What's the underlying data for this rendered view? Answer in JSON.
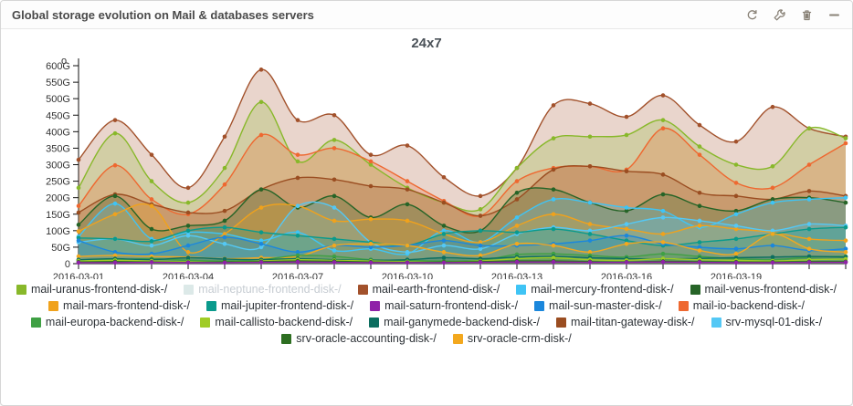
{
  "panel": {
    "title": "Global storage evolution on Mail & databases servers",
    "toolbar": {
      "icons": [
        "refresh-icon",
        "wrench-icon",
        "trash-icon",
        "minus-icon"
      ]
    }
  },
  "colors": {
    "header_title": "#4a4a4a",
    "toolbar_icon": "#8a8378",
    "axis_text": "#333333",
    "legend_text": "#2e3338",
    "legend_disabled_text": "#c6ccd2",
    "panel_border": "#d6d6d6"
  },
  "chart_data": {
    "type": "area",
    "title": "24x7",
    "xlabel": "",
    "ylabel": "",
    "grid": false,
    "legend_position": "bottom",
    "ylim": [
      0,
      620
    ],
    "y_ticks": [
      "0",
      "50G",
      "100G",
      "150G",
      "200G",
      "250G",
      "300G",
      "350G",
      "400G",
      "450G",
      "500G",
      "550G",
      "600G"
    ],
    "y_tick_values": [
      0,
      50,
      100,
      150,
      200,
      250,
      300,
      350,
      400,
      450,
      500,
      550,
      600
    ],
    "x": [
      "2016-03-01",
      "2016-03-02",
      "2016-03-03",
      "2016-03-04",
      "2016-03-05",
      "2016-03-06",
      "2016-03-07",
      "2016-03-08",
      "2016-03-09",
      "2016-03-10",
      "2016-03-11",
      "2016-03-12",
      "2016-03-13",
      "2016-03-14",
      "2016-03-15",
      "2016-03-16",
      "2016-03-17",
      "2016-03-18",
      "2016-03-19",
      "2016-03-20",
      "2016-03-21",
      "2016-03-22"
    ],
    "x_major_ticks": [
      "2016-03-01",
      "2016-03-04",
      "2016-03-07",
      "2016-03-10",
      "2016-03-13",
      "2016-03-16",
      "2016-03-19"
    ],
    "unit": "G",
    "axis_top_marker": "o",
    "series": [
      {
        "name": "mail-uranus-frontend-disk-/",
        "color": "#88b82a",
        "hidden": false,
        "values": [
          230,
          395,
          250,
          185,
          290,
          490,
          310,
          375,
          300,
          230,
          185,
          165,
          290,
          380,
          385,
          390,
          435,
          355,
          300,
          295,
          410,
          380
        ]
      },
      {
        "name": "mail-neptune-frontend-disk-/",
        "color": "#dce9e8",
        "hidden": true,
        "values": []
      },
      {
        "name": "mail-earth-frontend-disk-/",
        "color": "#a2512b",
        "hidden": false,
        "values": [
          315,
          435,
          330,
          230,
          385,
          588,
          435,
          450,
          330,
          358,
          262,
          205,
          290,
          480,
          485,
          445,
          510,
          420,
          370,
          475,
          410,
          385
        ]
      },
      {
        "name": "mail-mercury-frontend-disk-/",
        "color": "#3fc4f5",
        "hidden": false,
        "values": [
          82,
          182,
          75,
          95,
          90,
          70,
          95,
          40,
          45,
          30,
          100,
          65,
          140,
          195,
          185,
          170,
          160,
          110,
          150,
          185,
          195,
          200
        ]
      },
      {
        "name": "mail-venus-frontend-disk-/",
        "color": "#266427",
        "hidden": false,
        "values": [
          118,
          205,
          105,
          115,
          130,
          225,
          170,
          205,
          140,
          180,
          115,
          100,
          215,
          225,
          185,
          160,
          210,
          175,
          160,
          195,
          200,
          185
        ]
      },
      {
        "name": "mail-mars-frontend-disk-/",
        "color": "#f0a21c",
        "hidden": false,
        "values": [
          98,
          150,
          175,
          35,
          90,
          170,
          175,
          130,
          135,
          130,
          90,
          65,
          115,
          150,
          120,
          105,
          90,
          115,
          105,
          95,
          75,
          70
        ]
      },
      {
        "name": "mail-jupiter-frontend-disk-/",
        "color": "#0a9a8c",
        "hidden": false,
        "values": [
          78,
          75,
          68,
          100,
          110,
          95,
          85,
          75,
          65,
          55,
          90,
          100,
          95,
          105,
          90,
          70,
          55,
          65,
          75,
          90,
          105,
          110
        ]
      },
      {
        "name": "mail-saturn-frontend-disk-/",
        "color": "#8f22a8",
        "hidden": false,
        "values": [
          3,
          3,
          4,
          3,
          3,
          4,
          5,
          4,
          3,
          3,
          3,
          4,
          5,
          5,
          4,
          4,
          5,
          4,
          3,
          3,
          4,
          4
        ]
      },
      {
        "name": "mail-sun-master-disk-/",
        "color": "#1b87dc",
        "hidden": false,
        "values": [
          70,
          35,
          30,
          55,
          80,
          60,
          35,
          55,
          50,
          55,
          70,
          55,
          55,
          60,
          70,
          85,
          60,
          50,
          45,
          55,
          40,
          45
        ]
      },
      {
        "name": "mail-io-backend-disk-/",
        "color": "#ee6830",
        "hidden": false,
        "values": [
          175,
          298,
          195,
          150,
          240,
          390,
          330,
          350,
          310,
          250,
          190,
          145,
          250,
          290,
          295,
          285,
          410,
          330,
          245,
          230,
          300,
          365
        ]
      },
      {
        "name": "mail-europa-backend-disk-/",
        "color": "#3fa044",
        "hidden": false,
        "values": [
          10,
          12,
          15,
          10,
          8,
          12,
          25,
          22,
          12,
          10,
          8,
          10,
          28,
          30,
          25,
          20,
          30,
          22,
          15,
          12,
          20,
          22
        ]
      },
      {
        "name": "mail-callisto-backend-disk-/",
        "color": "#a0cc26",
        "hidden": false,
        "values": [
          8,
          10,
          8,
          6,
          5,
          8,
          12,
          10,
          8,
          6,
          5,
          8,
          15,
          18,
          12,
          10,
          15,
          12,
          10,
          8,
          12,
          14
        ]
      },
      {
        "name": "mail-ganymede-backend-disk-/",
        "color": "#0c6e60",
        "hidden": false,
        "values": [
          12,
          15,
          12,
          18,
          14,
          12,
          15,
          12,
          10,
          12,
          18,
          15,
          20,
          22,
          18,
          15,
          14,
          16,
          18,
          20,
          22,
          20
        ]
      },
      {
        "name": "mail-titan-gateway-disk-/",
        "color": "#9a4d21",
        "hidden": false,
        "values": [
          155,
          210,
          180,
          155,
          160,
          225,
          260,
          255,
          235,
          225,
          185,
          145,
          195,
          285,
          295,
          280,
          270,
          215,
          205,
          195,
          220,
          205
        ]
      },
      {
        "name": "srv-mysql-01-disk-/",
        "color": "#54c8f5",
        "hidden": false,
        "values": [
          65,
          75,
          55,
          85,
          60,
          50,
          175,
          170,
          65,
          35,
          55,
          45,
          90,
          110,
          100,
          120,
          140,
          130,
          115,
          100,
          120,
          115
        ]
      },
      {
        "name": "srv-oracle-accounting-disk-/",
        "color": "#2d6e21",
        "hidden": false,
        "values": [
          5,
          6,
          5,
          4,
          5,
          6,
          8,
          7,
          5,
          4,
          5,
          6,
          8,
          8,
          6,
          5,
          7,
          6,
          5,
          5,
          6,
          6
        ]
      },
      {
        "name": "srv-oracle-crm-disk-/",
        "color": "#f3a81e",
        "hidden": false,
        "values": [
          22,
          25,
          22,
          20,
          15,
          18,
          22,
          55,
          60,
          55,
          35,
          25,
          60,
          55,
          35,
          60,
          65,
          40,
          30,
          90,
          45,
          35
        ]
      }
    ]
  }
}
